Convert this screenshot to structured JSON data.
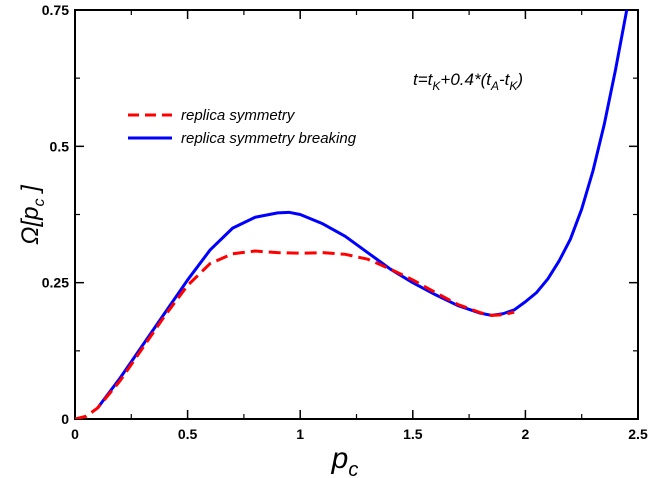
{
  "chart_data": {
    "type": "line",
    "xlabel": "p",
    "xlabel_sub": "c",
    "ylabel": "Ω[p",
    "ylabel_sub": "c",
    "ylabel_end": " ]",
    "xlim": [
      0,
      2.5
    ],
    "ylim": [
      0,
      0.75
    ],
    "xticks": [
      0,
      0.5,
      1,
      1.5,
      2,
      2.5
    ],
    "xtick_labels": [
      "0",
      "0.5",
      "1",
      "1.5",
      "2",
      "2.5"
    ],
    "yticks": [
      0,
      0.25,
      0.5,
      0.75
    ],
    "ytick_labels": [
      "0",
      "0.25",
      "0.5",
      "0.75"
    ],
    "legend_position": "upper-left",
    "annotation": {
      "parts": [
        "t=t",
        "K",
        "+0.4*(t",
        "A",
        "-t",
        "K",
        ")"
      ],
      "subscripts": [
        1,
        3,
        5
      ]
    },
    "grid": false,
    "series": [
      {
        "name": "replica symmetry",
        "color": "#ff0000",
        "style": "dashed",
        "x": [
          0.0,
          0.05,
          0.1,
          0.2,
          0.3,
          0.4,
          0.5,
          0.6,
          0.7,
          0.8,
          0.9,
          1.0,
          1.1,
          1.2,
          1.3,
          1.4,
          1.5,
          1.6,
          1.7,
          1.8,
          1.85,
          1.9,
          1.95
        ],
        "y": [
          0.0,
          0.005,
          0.02,
          0.07,
          0.13,
          0.19,
          0.245,
          0.285,
          0.303,
          0.308,
          0.305,
          0.304,
          0.305,
          0.302,
          0.293,
          0.275,
          0.255,
          0.232,
          0.21,
          0.195,
          0.19,
          0.191,
          0.196
        ]
      },
      {
        "name": "replica symmetry breaking",
        "color": "#0000ff",
        "style": "solid",
        "x": [
          0.1,
          0.2,
          0.3,
          0.4,
          0.5,
          0.6,
          0.7,
          0.8,
          0.9,
          0.95,
          1.0,
          1.1,
          1.2,
          1.3,
          1.4,
          1.5,
          1.6,
          1.7,
          1.8,
          1.85,
          1.9,
          1.95,
          2.0,
          2.05,
          2.1,
          2.15,
          2.2,
          2.25,
          2.3,
          2.35,
          2.4,
          2.45
        ],
        "y": [
          0.02,
          0.075,
          0.135,
          0.195,
          0.255,
          0.31,
          0.35,
          0.37,
          0.378,
          0.379,
          0.375,
          0.358,
          0.335,
          0.305,
          0.275,
          0.25,
          0.228,
          0.208,
          0.194,
          0.19,
          0.193,
          0.2,
          0.215,
          0.232,
          0.257,
          0.29,
          0.33,
          0.385,
          0.455,
          0.54,
          0.64,
          0.75
        ]
      }
    ]
  }
}
